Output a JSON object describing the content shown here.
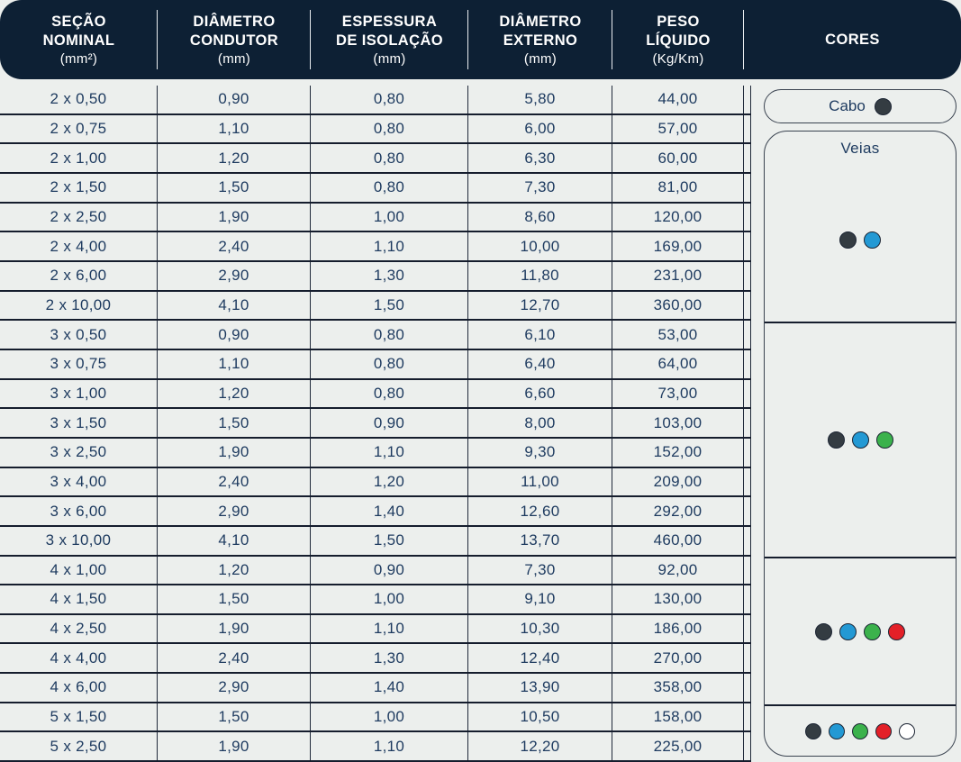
{
  "header": {
    "columns": [
      {
        "title": "SEÇÃO\nNOMINAL",
        "unit": "(mm²)"
      },
      {
        "title": "DIÂMETRO\nCONDUTOR",
        "unit": "(mm)"
      },
      {
        "title": "ESPESSURA\nDE ISOLAÇÃO",
        "unit": "(mm)"
      },
      {
        "title": "DIÂMETRO\nEXTERNO",
        "unit": "(mm)"
      },
      {
        "title": "PESO\nLÍQUIDO",
        "unit": "(Kg/Km)"
      },
      {
        "title": "CORES",
        "unit": ""
      }
    ]
  },
  "rows": [
    [
      "2 x 0,50",
      "0,90",
      "0,80",
      "5,80",
      "44,00"
    ],
    [
      "2 x 0,75",
      "1,10",
      "0,80",
      "6,00",
      "57,00"
    ],
    [
      "2 x 1,00",
      "1,20",
      "0,80",
      "6,30",
      "60,00"
    ],
    [
      "2 x 1,50",
      "1,50",
      "0,80",
      "7,30",
      "81,00"
    ],
    [
      "2 x 2,50",
      "1,90",
      "1,00",
      "8,60",
      "120,00"
    ],
    [
      "2 x 4,00",
      "2,40",
      "1,10",
      "10,00",
      "169,00"
    ],
    [
      "2 x 6,00",
      "2,90",
      "1,30",
      "11,80",
      "231,00"
    ],
    [
      "2 x 10,00",
      "4,10",
      "1,50",
      "12,70",
      "360,00"
    ],
    [
      "3 x 0,50",
      "0,90",
      "0,80",
      "6,10",
      "53,00"
    ],
    [
      "3 x 0,75",
      "1,10",
      "0,80",
      "6,40",
      "64,00"
    ],
    [
      "3 x 1,00",
      "1,20",
      "0,80",
      "6,60",
      "73,00"
    ],
    [
      "3 x 1,50",
      "1,50",
      "0,90",
      "8,00",
      "103,00"
    ],
    [
      "3 x 2,50",
      "1,90",
      "1,10",
      "9,30",
      "152,00"
    ],
    [
      "3 x 4,00",
      "2,40",
      "1,20",
      "11,00",
      "209,00"
    ],
    [
      "3 x 6,00",
      "2,90",
      "1,40",
      "12,60",
      "292,00"
    ],
    [
      "3 x 10,00",
      "4,10",
      "1,50",
      "13,70",
      "460,00"
    ],
    [
      "4 x 1,00",
      "1,20",
      "0,90",
      "7,30",
      "92,00"
    ],
    [
      "4 x 1,50",
      "1,50",
      "1,00",
      "9,10",
      "130,00"
    ],
    [
      "4 x 2,50",
      "1,90",
      "1,10",
      "10,30",
      "186,00"
    ],
    [
      "4 x 4,00",
      "2,40",
      "1,30",
      "12,40",
      "270,00"
    ],
    [
      "4 x 6,00",
      "2,90",
      "1,40",
      "13,90",
      "358,00"
    ],
    [
      "5 x 1,50",
      "1,50",
      "1,00",
      "10,50",
      "158,00"
    ],
    [
      "5 x 2,50",
      "1,90",
      "1,10",
      "12,20",
      "225,00"
    ]
  ],
  "groups": [
    {
      "row_count": 8,
      "veia_dots": [
        "black",
        "blue"
      ]
    },
    {
      "row_count": 8,
      "veia_dots": [
        "black",
        "blue",
        "green"
      ]
    },
    {
      "row_count": 5,
      "veia_dots": [
        "black",
        "blue",
        "green",
        "red"
      ]
    },
    {
      "row_count": 2,
      "veia_dots": [
        "black",
        "blue",
        "green",
        "red",
        "white"
      ]
    }
  ],
  "cores_panel": {
    "cabo_label": "Cabo",
    "cabo_dot": "black",
    "veias_label": "Veias"
  },
  "colors": {
    "header_bg": "#0d2034",
    "row_bg": "#ecefed",
    "grid_line": "#151d2d",
    "text": "#1d3a5f",
    "dot_black": "#343c42",
    "dot_blue": "#2399d4",
    "dot_green": "#3bb24c",
    "dot_red": "#e32028",
    "dot_white": "#ffffff"
  }
}
